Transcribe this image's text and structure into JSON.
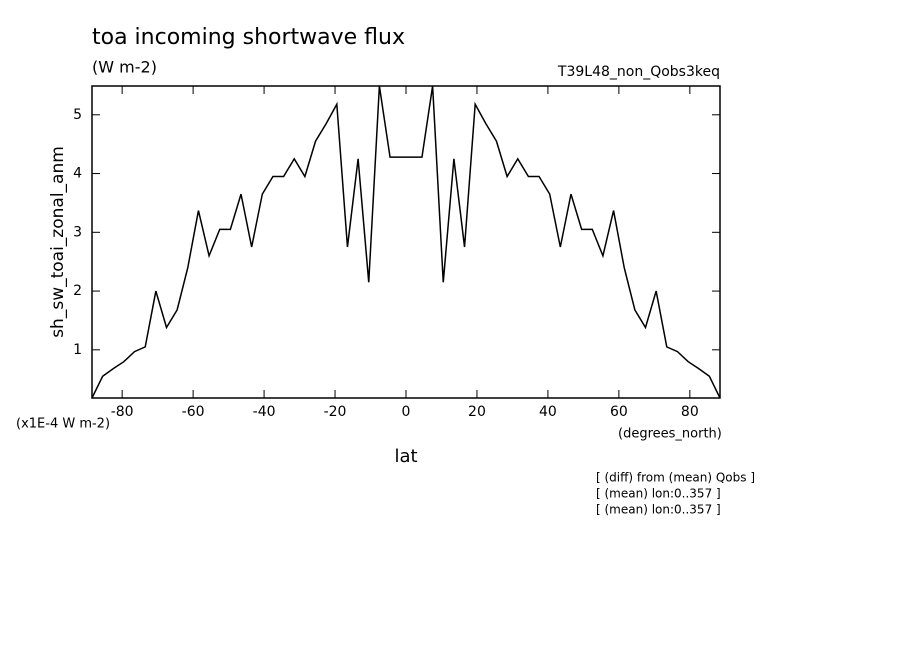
{
  "chart_data": {
    "type": "line",
    "title": "toa incoming shortwave flux",
    "subtitle": "(W m-2)",
    "run_label": "T39L48_non_Qobs3keq",
    "y_label": "sh_sw_toai_zonal_anm",
    "y_units": "(x1E-4 W m-2)",
    "x_units": "(degrees_north)",
    "x_label": "lat",
    "notes": [
      "[ (diff) from (mean) Qobs ]",
      "[ (mean) lon:0..357 ]",
      "[ (mean) lon:0..357 ]"
    ],
    "x": [
      -88.5,
      -85.5,
      -82.5,
      -79.5,
      -76.5,
      -73.5,
      -70.5,
      -67.5,
      -64.5,
      -61.5,
      -58.5,
      -55.5,
      -52.5,
      -49.5,
      -46.5,
      -43.5,
      -40.5,
      -37.5,
      -34.5,
      -31.5,
      -28.5,
      -25.5,
      -22.5,
      -19.5,
      -16.5,
      -13.5,
      -10.5,
      -7.5,
      -4.5,
      -1.5,
      1.5,
      4.5,
      7.5,
      10.5,
      13.5,
      16.5,
      19.5,
      22.5,
      25.5,
      28.5,
      31.5,
      34.5,
      37.5,
      40.5,
      43.5,
      46.5,
      49.5,
      52.5,
      55.5,
      58.5,
      61.5,
      64.5,
      67.5,
      70.5,
      73.5,
      76.5,
      79.5,
      82.5,
      85.5,
      88.5
    ],
    "series": [
      {
        "color": "#000000",
        "values": [
          0.18,
          0.55,
          0.68,
          0.8,
          0.97,
          1.05,
          2.0,
          1.38,
          1.68,
          2.4,
          3.37,
          2.6,
          3.05,
          3.05,
          3.65,
          2.75,
          3.65,
          3.95,
          3.95,
          4.25,
          3.95,
          4.55,
          4.85,
          5.18,
          2.75,
          4.25,
          2.15,
          5.49,
          4.28,
          4.28,
          4.28,
          4.28,
          5.49,
          2.15,
          4.25,
          2.75,
          5.18,
          4.85,
          4.55,
          3.95,
          4.25,
          3.95,
          3.95,
          3.65,
          2.75,
          3.65,
          3.05,
          3.05,
          2.6,
          3.37,
          2.4,
          1.68,
          1.38,
          2.0,
          1.05,
          0.97,
          0.8,
          0.68,
          0.55,
          0.18
        ]
      }
    ],
    "xlim": [
      -88.5,
      88.5
    ],
    "ylim": [
      0.18,
      5.49
    ],
    "xticks": [
      -80,
      -60,
      -40,
      -20,
      0,
      20,
      40,
      60,
      80
    ],
    "yticks": [
      1,
      2,
      3,
      4,
      5
    ],
    "grid": false
  }
}
